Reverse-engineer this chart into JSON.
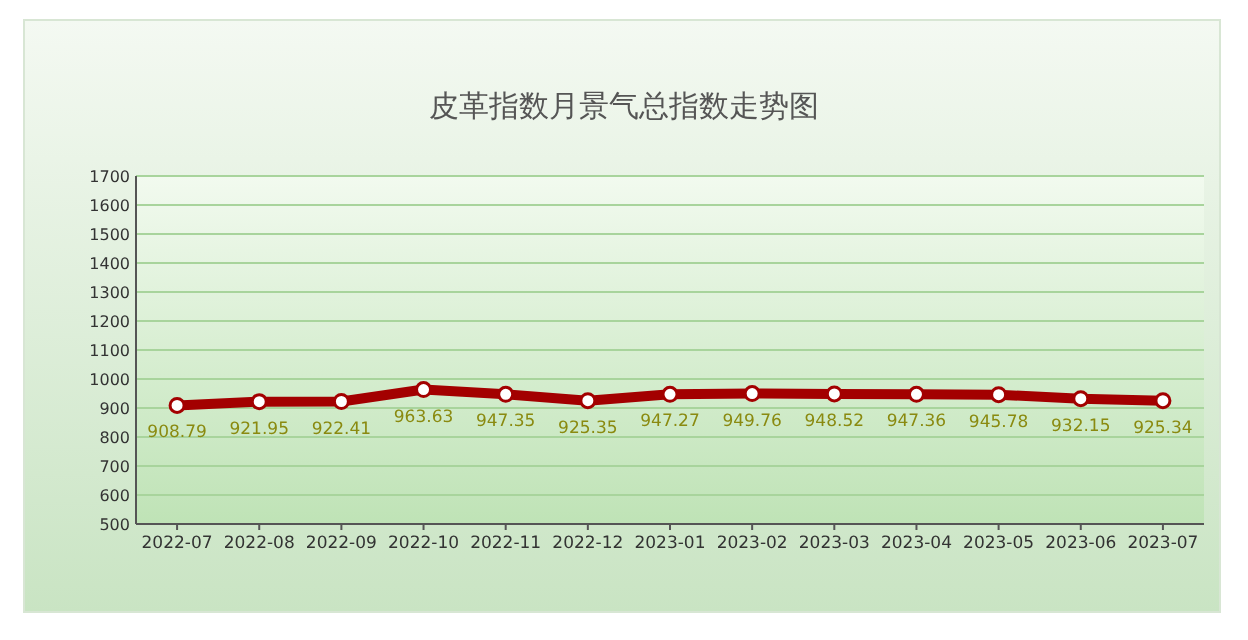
{
  "chart_data": {
    "type": "line",
    "title": "皮革指数月景气总指数走势图",
    "categories": [
      "2022-07",
      "2022-08",
      "2022-09",
      "2022-10",
      "2022-11",
      "2022-12",
      "2023-01",
      "2023-02",
      "2023-03",
      "2023-04",
      "2023-05",
      "2023-06",
      "2023-07"
    ],
    "series": [
      {
        "color": "#a30000",
        "values": [
          908.79,
          921.95,
          922.41,
          963.63,
          947.35,
          925.35,
          947.27,
          949.76,
          948.52,
          947.36,
          945.78,
          932.15,
          925.34
        ]
      }
    ],
    "ylim": [
      500,
      1700
    ],
    "yticks": [
      500,
      600,
      700,
      800,
      900,
      1000,
      1100,
      1200,
      1300,
      1400,
      1500,
      1600,
      1700
    ],
    "grid": "y",
    "marker": "circle",
    "line_style": "solid",
    "data_labels": true
  }
}
